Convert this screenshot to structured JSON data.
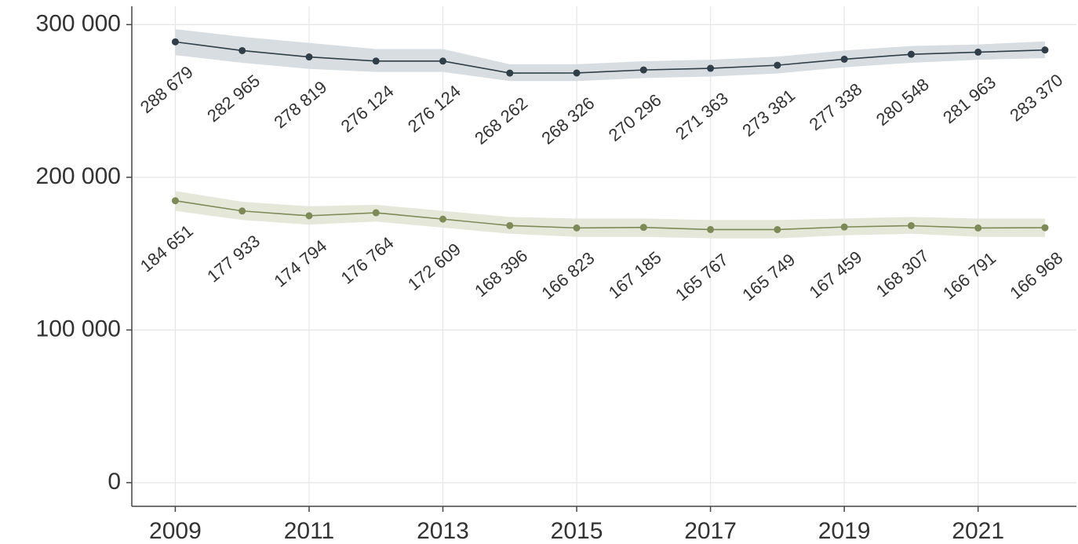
{
  "chart_data": {
    "type": "line",
    "x": [
      2009,
      2010,
      2011,
      2012,
      2013,
      2014,
      2015,
      2016,
      2017,
      2018,
      2019,
      2020,
      2021,
      2022
    ],
    "series": [
      {
        "color": "#2f3e48",
        "band_color": "#d3d9dd",
        "values": [
          288679,
          282965,
          278819,
          276124,
          276124,
          268262,
          268326,
          270296,
          271363,
          273381,
          277338,
          280548,
          281963,
          283370
        ],
        "value_labels": [
          "288 679",
          "282 965",
          "278 819",
          "276 124",
          "276 124",
          "268 262",
          "268 326",
          "270 296",
          "271 363",
          "273 381",
          "277 338",
          "280 548",
          "281 963",
          "283 370"
        ],
        "upper": [
          297000,
          292000,
          288000,
          284000,
          284000,
          274000,
          274000,
          276000,
          277000,
          279000,
          283000,
          286000,
          287000,
          289000
        ],
        "lower": [
          280000,
          275000,
          271000,
          269000,
          269000,
          263000,
          263000,
          265000,
          266000,
          268000,
          272000,
          275000,
          277000,
          278000
        ]
      },
      {
        "color": "#7d8a58",
        "band_color": "#e2e5d5",
        "values": [
          184651,
          177933,
          174794,
          176764,
          172609,
          168396,
          166823,
          167185,
          165767,
          165749,
          167459,
          168307,
          166791,
          166968
        ],
        "value_labels": [
          "184 651",
          "177 933",
          "174 794",
          "176 764",
          "172 609",
          "168 396",
          "166 823",
          "167 185",
          "165 767",
          "165 749",
          "167 459",
          "168 307",
          "166 791",
          "166 968"
        ],
        "upper": [
          191000,
          184000,
          181000,
          182000,
          178000,
          174000,
          173000,
          173000,
          172000,
          172000,
          173000,
          174000,
          173000,
          173000
        ],
        "lower": [
          178000,
          172000,
          169000,
          171000,
          167000,
          163000,
          161000,
          161000,
          160000,
          160000,
          162000,
          163000,
          161000,
          161000
        ]
      }
    ],
    "xlim": [
      2008.35,
      2022.47
    ],
    "xticks": [
      2009,
      2011,
      2013,
      2015,
      2017,
      2019,
      2021
    ],
    "ylim": [
      -15500,
      312000
    ],
    "yticks": [
      0,
      {
        "value": 100000,
        "label": "100 000"
      },
      {
        "value": 200000,
        "label": "200 000"
      },
      {
        "value": 300000,
        "label": "300 000"
      }
    ],
    "grid": true
  }
}
